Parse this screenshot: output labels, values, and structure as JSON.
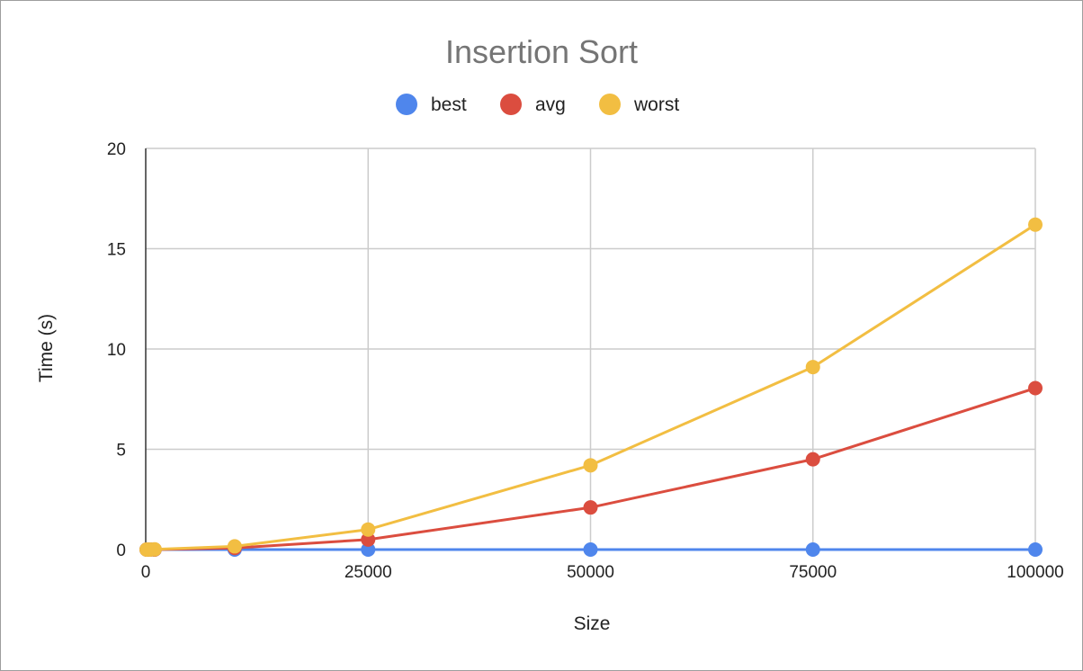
{
  "chart_data": {
    "type": "line",
    "title": "Insertion Sort",
    "xlabel": "Size",
    "ylabel": "Time (s)",
    "xlim": [
      0,
      100000
    ],
    "ylim": [
      0,
      20
    ],
    "x_ticks": [
      "0",
      "25000",
      "50000",
      "75000",
      "100000"
    ],
    "y_ticks": [
      "0",
      "5",
      "10",
      "15",
      "20"
    ],
    "grid": true,
    "legend_position": "top",
    "series": [
      {
        "name": "best",
        "color": "#4f86ec",
        "x": [
          100,
          500,
          1000,
          10000,
          25000,
          50000,
          75000,
          100000
        ],
        "y": [
          0,
          0,
          0,
          0,
          0,
          0,
          0,
          0
        ]
      },
      {
        "name": "avg",
        "color": "#db4d3f",
        "x": [
          100,
          500,
          1000,
          10000,
          25000,
          50000,
          75000,
          100000
        ],
        "y": [
          0,
          0,
          0,
          0.08,
          0.5,
          2.1,
          4.5,
          8.05
        ]
      },
      {
        "name": "worst",
        "color": "#f2be42",
        "x": [
          100,
          500,
          1000,
          10000,
          25000,
          50000,
          75000,
          100000
        ],
        "y": [
          0,
          0,
          0.01,
          0.16,
          1.0,
          4.2,
          9.1,
          16.2
        ]
      }
    ]
  }
}
